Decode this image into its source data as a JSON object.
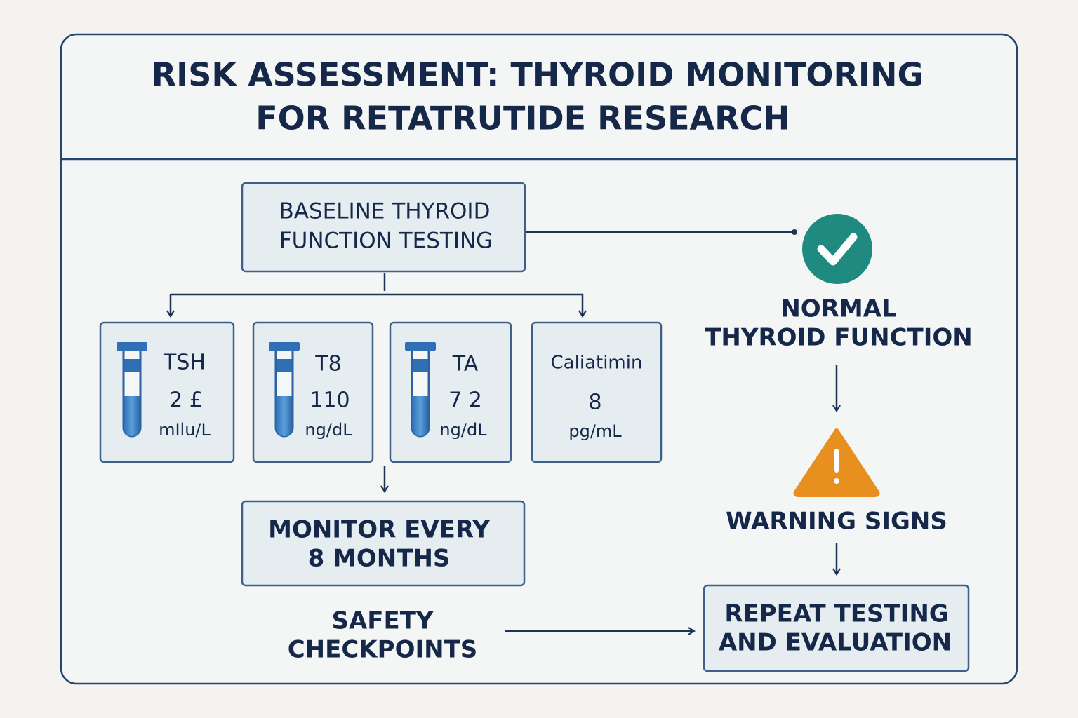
{
  "header": {
    "title": [
      "RISK ASSESSMENT: THYROID MONITORING",
      "FOR RETATRUTIDE RESEARCH"
    ]
  },
  "baseline": {
    "lines": [
      "BASELINE THYROID",
      "FUNCTION TESTING"
    ]
  },
  "tests": [
    {
      "name": "TSH",
      "value": "2 £",
      "unit": "mIlu/L"
    },
    {
      "name": "T8",
      "value": "110",
      "unit": "ng/dL"
    },
    {
      "name": "TA",
      "value": "7 2",
      "unit": "ng/dL"
    },
    {
      "name": "Caliatimin",
      "value": "8",
      "unit": "pg/mL"
    }
  ],
  "monitor": {
    "lines": [
      "MONITOR EVERY",
      "8 MONTHS"
    ]
  },
  "safety": {
    "lines": [
      "SAFETY",
      "CHECKPOINTS"
    ]
  },
  "normal": {
    "lines": [
      "NORMAL",
      "THYROID FUNCTION"
    ]
  },
  "warning": {
    "label": "WARNING SIGNS"
  },
  "repeat": {
    "lines": [
      "REPEAT TESTING",
      "AND EVALUATION"
    ]
  }
}
